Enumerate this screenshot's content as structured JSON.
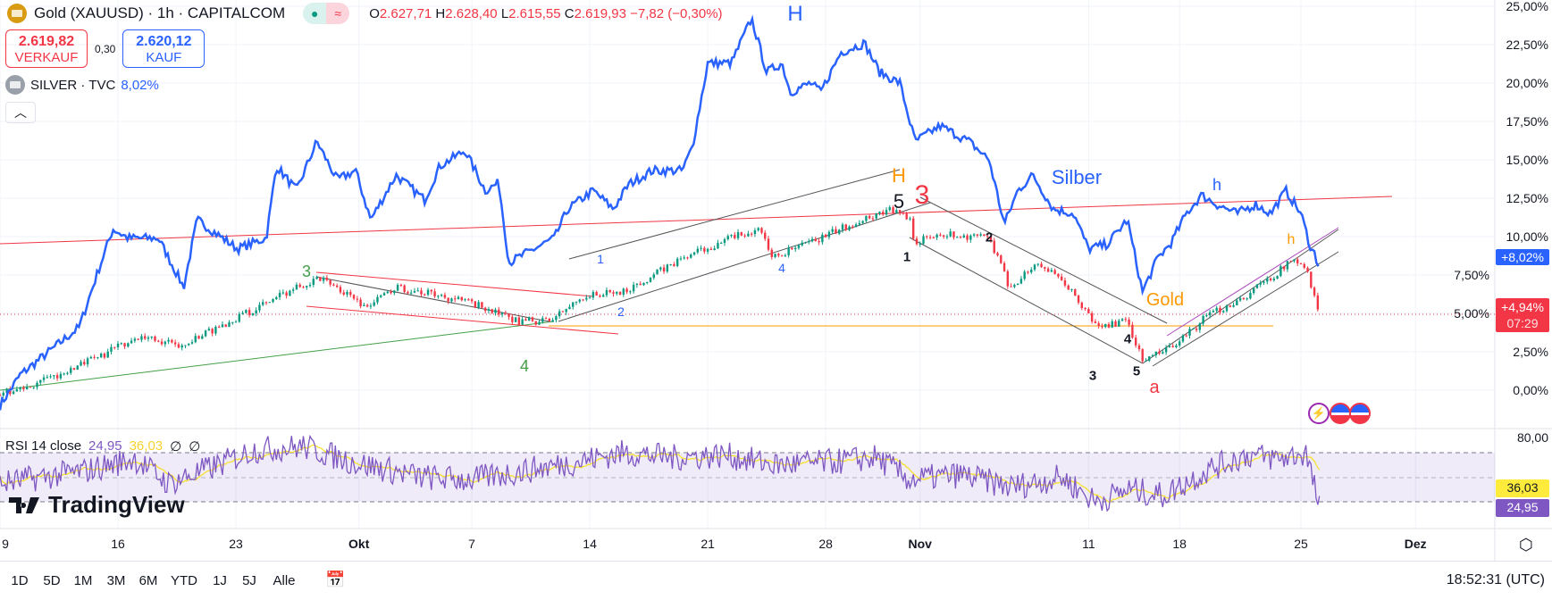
{
  "header": {
    "title": "Gold (XAUUSD) · 1h · CAPITALCOM",
    "o_label": "O",
    "o": "2.627,71",
    "h_label": "H",
    "h": "2.628,40",
    "l_label": "L",
    "l": "2.615,55",
    "c_label": "C",
    "c": "2.619,93",
    "change": "−7,82 (−0,30%)"
  },
  "trade": {
    "sell_price": "2.619,82",
    "sell_label": "VERKAUF",
    "spread": "0,30",
    "buy_price": "2.620,12",
    "buy_label": "KAUF"
  },
  "compare": {
    "symbol": "SILVER · TVC",
    "value": "8,02%"
  },
  "collapse_icon": "chevron-up-icon",
  "price_axis": [
    "25,00%",
    "22,50%",
    "20,00%",
    "17,50%",
    "15,00%",
    "12,50%",
    "10,00%",
    "7,50%",
    "5,00%",
    "2,50%",
    "0,00%"
  ],
  "tags": {
    "silver": "+8,02%",
    "gold": "+4,94%",
    "countdown": "07:29",
    "rsi": "24,95",
    "rsi_ma": "36,03"
  },
  "rsi": {
    "legend": "RSI 14 close",
    "value": "24,95",
    "ma": "36,03",
    "na1": "∅",
    "na2": "∅",
    "axis": "80,00"
  },
  "time_axis": [
    {
      "t": "9",
      "d": 0,
      "b": false
    },
    {
      "t": "16",
      "d": 7,
      "b": false
    },
    {
      "t": "23",
      "d": 14,
      "b": false
    },
    {
      "t": "Okt",
      "d": 21.3,
      "b": true
    },
    {
      "t": "7",
      "d": 28,
      "b": false
    },
    {
      "t": "14",
      "d": 35,
      "b": false
    },
    {
      "t": "21",
      "d": 42,
      "b": false
    },
    {
      "t": "28",
      "d": 49,
      "b": false
    },
    {
      "t": "Nov",
      "d": 54.6,
      "b": true
    },
    {
      "t": "11",
      "d": 64.6,
      "b": false
    },
    {
      "t": "18",
      "d": 70,
      "b": false
    },
    {
      "t": "25",
      "d": 77.2,
      "b": false
    },
    {
      "t": "Dez",
      "d": 84,
      "b": true
    }
  ],
  "annotations": {
    "silver_H": "H",
    "silber": "Silber",
    "silver_h": "h",
    "gold": "Gold",
    "gold_h": "h",
    "gold_H": "H",
    "w5": "5",
    "w3": "3",
    "g3": "3",
    "g4": "4",
    "b1": "1",
    "b2": "2",
    "b4": "4",
    "k1": "1",
    "k2": "2",
    "k3": "3",
    "k4": "4",
    "k5": "5",
    "a": "a"
  },
  "logo": "TradingView",
  "bottom": {
    "timeframes": [
      "1D",
      "5D",
      "1M",
      "3M",
      "6M",
      "YTD",
      "1J",
      "5J",
      "Alle"
    ],
    "clock": "18:52:31 (UTC)"
  },
  "colors": {
    "silver": "#2962ff",
    "up": "#089981",
    "down": "#f23645",
    "rsi": "#7e57c2",
    "rsi_ma": "#f7e02f"
  },
  "chart_data": {
    "type": "line",
    "x_unit": "days since Sep 9",
    "y_unit": "% change",
    "ylim": [
      -2,
      25
    ],
    "series": [
      {
        "name": "SILVER",
        "type": "line",
        "points": [
          [
            0,
            -1
          ],
          [
            1.2,
            1
          ],
          [
            2.9,
            2.5
          ],
          [
            4.7,
            4.1
          ],
          [
            5.9,
            8
          ],
          [
            6.7,
            10.5
          ],
          [
            7.6,
            9.9
          ],
          [
            9.4,
            9.9
          ],
          [
            10.9,
            6.7
          ],
          [
            11.7,
            11.1
          ],
          [
            14.1,
            9.2
          ],
          [
            15.8,
            9.9
          ],
          [
            16.4,
            14.6
          ],
          [
            17.6,
            13
          ],
          [
            18.8,
            16.2
          ],
          [
            20,
            13.7
          ],
          [
            21.1,
            14.3
          ],
          [
            22,
            11.1
          ],
          [
            23.5,
            14
          ],
          [
            25.2,
            12.4
          ],
          [
            26.1,
            14.6
          ],
          [
            27.6,
            15.6
          ],
          [
            28.8,
            13
          ],
          [
            29.6,
            13.5
          ],
          [
            30.2,
            8.3
          ],
          [
            31.7,
            9.2
          ],
          [
            32.9,
            9.9
          ],
          [
            33.7,
            11.8
          ],
          [
            35.2,
            13
          ],
          [
            36.4,
            11.8
          ],
          [
            37.3,
            13.4
          ],
          [
            38.7,
            14.3
          ],
          [
            40.5,
            14.3
          ],
          [
            41.1,
            15.9
          ],
          [
            42,
            21.3
          ],
          [
            43.4,
            21.3
          ],
          [
            44.6,
            24.2
          ],
          [
            45.5,
            20.7
          ],
          [
            46.4,
            21.3
          ],
          [
            46.9,
            19.4
          ],
          [
            48.1,
            20
          ],
          [
            48.7,
            19.4
          ],
          [
            49.9,
            22
          ],
          [
            51.3,
            22.6
          ],
          [
            52.2,
            20.7
          ],
          [
            53.4,
            20
          ],
          [
            54.3,
            16.2
          ],
          [
            55.8,
            17.2
          ],
          [
            57.5,
            16.2
          ],
          [
            58.7,
            15
          ],
          [
            59.6,
            10.8
          ],
          [
            60.4,
            13
          ],
          [
            61.3,
            14
          ],
          [
            62.5,
            11.8
          ],
          [
            63.7,
            11.5
          ],
          [
            64.6,
            9.2
          ],
          [
            65.7,
            9.5
          ],
          [
            66.9,
            11.1
          ],
          [
            67.8,
            6.4
          ],
          [
            68.7,
            8.6
          ],
          [
            69.5,
            9.6
          ],
          [
            70.4,
            11.5
          ],
          [
            71.3,
            12.7
          ],
          [
            72.2,
            12.1
          ],
          [
            73.4,
            11.5
          ],
          [
            74.5,
            12.1
          ],
          [
            75.4,
            11.5
          ],
          [
            76.3,
            13
          ],
          [
            77.2,
            11.5
          ],
          [
            77.8,
            9.2
          ],
          [
            78,
            8.9
          ],
          [
            78.3,
            8.02
          ]
        ]
      },
      {
        "name": "Gold (XAUUSD)",
        "type": "candlestick",
        "points": [
          [
            0,
            -0.3
          ],
          [
            3.5,
            1
          ],
          [
            5.9,
            2.2
          ],
          [
            8.2,
            3.5
          ],
          [
            10.6,
            2.9
          ],
          [
            12.9,
            4.1
          ],
          [
            15.3,
            5.4
          ],
          [
            17,
            6.4
          ],
          [
            18.8,
            7.3
          ],
          [
            20.5,
            6.4
          ],
          [
            21.7,
            5.4
          ],
          [
            23.5,
            6.7
          ],
          [
            26.4,
            6.1
          ],
          [
            28.8,
            5.4
          ],
          [
            30.5,
            4.5
          ],
          [
            32.6,
            4.5
          ],
          [
            34.6,
            6.1
          ],
          [
            37,
            6.4
          ],
          [
            40.5,
            8.6
          ],
          [
            43.4,
            9.9
          ],
          [
            45.2,
            10.5
          ],
          [
            45.8,
            8.6
          ],
          [
            48.1,
            9.6
          ],
          [
            51.1,
            11.1
          ],
          [
            52.8,
            11.8
          ],
          [
            54,
            11.1
          ],
          [
            54.3,
            9.6
          ],
          [
            55.8,
            10.2
          ],
          [
            58.7,
            9.9
          ],
          [
            59.9,
            6.7
          ],
          [
            61.6,
            8.3
          ],
          [
            63.4,
            6.7
          ],
          [
            65.1,
            4.1
          ],
          [
            66.9,
            4.5
          ],
          [
            67.8,
            1.9
          ],
          [
            69.8,
            2.9
          ],
          [
            71.6,
            4.8
          ],
          [
            73.9,
            6.1
          ],
          [
            75.7,
            7.6
          ],
          [
            76.9,
            8.6
          ],
          [
            77.5,
            8
          ],
          [
            77.8,
            6.7
          ],
          [
            78.3,
            4.94
          ]
        ]
      },
      {
        "name": "RSI 14",
        "type": "line",
        "points": [
          [
            0,
            45
          ],
          [
            5,
            55
          ],
          [
            8,
            65
          ],
          [
            10,
            45
          ],
          [
            13,
            60
          ],
          [
            15,
            72
          ],
          [
            18,
            75
          ],
          [
            21,
            62
          ],
          [
            25,
            50
          ],
          [
            28,
            48
          ],
          [
            31,
            55
          ],
          [
            34,
            62
          ],
          [
            37,
            70
          ],
          [
            40,
            66
          ],
          [
            43,
            68
          ],
          [
            46,
            60
          ],
          [
            49,
            62
          ],
          [
            52,
            66
          ],
          [
            54,
            48
          ],
          [
            57,
            52
          ],
          [
            60,
            42
          ],
          [
            63,
            50
          ],
          [
            65,
            30
          ],
          [
            67,
            40
          ],
          [
            69,
            35
          ],
          [
            72,
            58
          ],
          [
            74,
            68
          ],
          [
            76,
            65
          ],
          [
            77.5,
            70
          ],
          [
            78.3,
            24.95
          ]
        ]
      }
    ]
  }
}
